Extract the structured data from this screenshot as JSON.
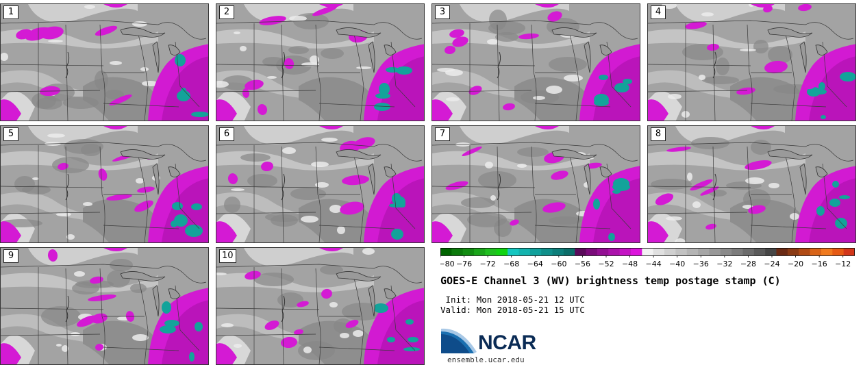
{
  "members": [
    {
      "label": "1"
    },
    {
      "label": "2"
    },
    {
      "label": "3"
    },
    {
      "label": "4"
    },
    {
      "label": "5"
    },
    {
      "label": "6"
    },
    {
      "label": "7"
    },
    {
      "label": "8"
    },
    {
      "label": "9"
    },
    {
      "label": "10"
    }
  ],
  "colorbar": {
    "ticks": [
      "−80",
      "−76",
      "−72",
      "−68",
      "−64",
      "−60",
      "−56",
      "−52",
      "−48",
      "−44",
      "−40",
      "−36",
      "−32",
      "−28",
      "−24",
      "−20",
      "−16",
      "−12"
    ],
    "colors": [
      "#006400",
      "#0b7a0b",
      "#128c12",
      "#1aa51a",
      "#20bf20",
      "#11d311",
      "#15c6c0",
      "#13b3ae",
      "#10a09b",
      "#0f8f8a",
      "#0d7e7a",
      "#0b6d69",
      "#5a0a5a",
      "#7a0b7a",
      "#930f93",
      "#ab12ab",
      "#c414c4",
      "#dc14dc",
      "#f2f2f2",
      "#e0e0e0",
      "#d0d0d0",
      "#c2c2c2",
      "#b4b4b4",
      "#a6a6a6",
      "#989898",
      "#8a8a8a",
      "#7c7c7c",
      "#6c6c6c",
      "#5a5a5a",
      "#464646",
      "#6a2a14",
      "#8a3a14",
      "#b04a14",
      "#d86418",
      "#f07a1e",
      "#e55a14",
      "#d2361a"
    ]
  },
  "title": "GOES-E Channel 3 (WV) brightness temp postage stamp (C)",
  "init": " Init: Mon 2018-05-21 12 UTC",
  "valid": "Valid: Mon 2018-05-21 15 UTC",
  "logo": "NCAR",
  "website": "ensemble.ucar.edu"
}
